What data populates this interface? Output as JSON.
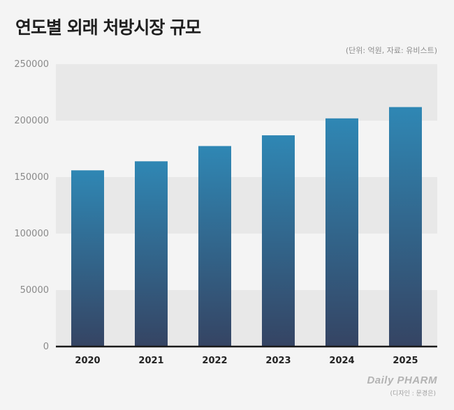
{
  "title": "연도별 외래 처방시장 규모",
  "unit_note": "(단위: 억원, 자료: 유비스트)",
  "logo_text": "Daily PHARM",
  "credit": "(디자인 : 문경은)",
  "colors": {
    "bar_top": "#2f87b4",
    "bar_bottom": "#354463",
    "band": "#e8e8e8",
    "axis": "#1a1a1a"
  },
  "chart_data": {
    "type": "bar",
    "title": "연도별 외래 처방시장 규모",
    "xlabel": "",
    "ylabel": "",
    "categories": [
      "2020",
      "2021",
      "2022",
      "2023",
      "2024",
      "2025"
    ],
    "values": [
      156000,
      164000,
      177500,
      187000,
      202000,
      212000
    ],
    "ylim": [
      0,
      250000
    ],
    "yticks": [
      "0",
      "50000",
      "100000",
      "150000",
      "200000",
      "250000"
    ],
    "grid": "alternating bands",
    "legend": "none"
  }
}
